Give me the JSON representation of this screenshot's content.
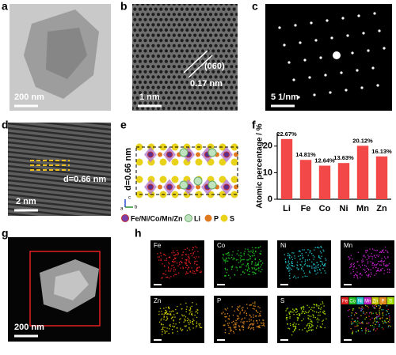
{
  "a": {
    "label": "a",
    "scale_bar": "200 nm"
  },
  "b": {
    "label": "b",
    "plane": "(060)",
    "spacing": "0.17 nm",
    "scale_bar": "1 nm"
  },
  "c": {
    "label": "c",
    "scale_bar": "5 1/nm"
  },
  "d": {
    "label": "d",
    "spacing": "d=0.66 nm",
    "scale_bar": "2 nm"
  },
  "e": {
    "label": "e",
    "spacing": "d=0.66 nm",
    "axes": [
      "a",
      "b",
      "c"
    ],
    "legend": [
      "Fe/Ni/Co/Mn/Zn",
      "Li",
      "P",
      "S"
    ]
  },
  "f": {
    "label": "f"
  },
  "g": {
    "label": "g",
    "scale_bar": "200 nm"
  },
  "h": {
    "label": "h",
    "maps": [
      "Fe",
      "Co",
      "Ni",
      "Mn",
      "Zn",
      "P",
      "S"
    ],
    "merged_legend": [
      "Fe",
      "Co",
      "Ni",
      "Mn",
      "Zn",
      "P",
      "S"
    ]
  },
  "chart_data": {
    "type": "bar",
    "categories": [
      "Li",
      "Fe",
      "Co",
      "Ni",
      "Mn",
      "Zn"
    ],
    "values": [
      22.67,
      14.81,
      12.64,
      13.63,
      20.12,
      16.13
    ],
    "value_labels": [
      "22.67%",
      "14.81%",
      "12.64%",
      "13.63%",
      "20.12%",
      "16.13%"
    ],
    "color": "#f24848",
    "ylabel": "Atomic percentage / %",
    "ylim": [
      0,
      25
    ],
    "yticks": [
      0,
      10,
      20
    ]
  }
}
